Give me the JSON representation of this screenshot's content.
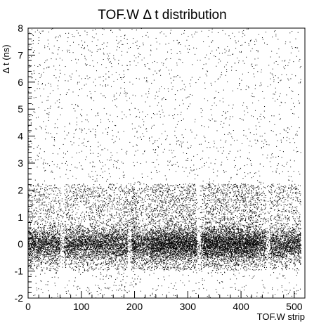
{
  "chart_data": {
    "type": "scatter",
    "title": "TOF.W Δ t distribution",
    "xlabel": "TOF.W strip",
    "ylabel": "Δ t (ns)",
    "xlim": [
      0,
      520
    ],
    "ylim": [
      -2,
      8
    ],
    "x_ticks": [
      0,
      100,
      200,
      300,
      400,
      500
    ],
    "y_ticks": [
      -2,
      -1,
      0,
      1,
      2,
      3,
      4,
      5,
      6,
      7,
      8
    ],
    "grid": false,
    "legend": "none",
    "marker_color": "#000000",
    "peak_center_dt": 0,
    "peak_range_dt": [
      -0.5,
      0.5
    ],
    "strip_groups": [
      {
        "x_range": [
          0,
          64
        ]
      },
      {
        "x_range": [
          64,
          128
        ]
      },
      {
        "x_range": [
          128,
          192
        ]
      },
      {
        "x_range": [
          192,
          256
        ]
      },
      {
        "x_range": [
          256,
          320
        ]
      },
      {
        "x_range": [
          320,
          384
        ]
      },
      {
        "x_range": [
          384,
          448
        ]
      },
      {
        "x_range": [
          448,
          512
        ]
      }
    ]
  }
}
